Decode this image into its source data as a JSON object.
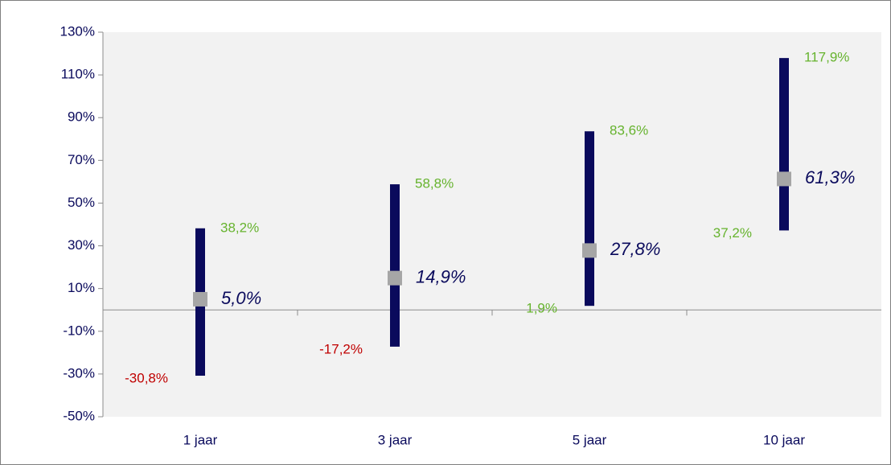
{
  "chart_data": {
    "type": "range",
    "categories": [
      "1 jaar",
      "3 jaar",
      "5 jaar",
      "10 jaar"
    ],
    "high": {
      "values": [
        38.2,
        58.8,
        83.6,
        117.9
      ],
      "value_labels": [
        "38,2%",
        "58,8%",
        "83,6%",
        "117,9%"
      ],
      "color": "#66b32e"
    },
    "low": {
      "values": [
        -30.8,
        -17.2,
        1.9,
        37.2
      ],
      "value_labels": [
        "-30,8%",
        "-17,2%",
        "1,9%",
        "37,2%"
      ],
      "colors": [
        "#c00000",
        "#c00000",
        "#66b32e",
        "#66b32e"
      ]
    },
    "mid": {
      "values": [
        5.0,
        14.9,
        27.8,
        61.3
      ],
      "value_labels": [
        "5,0%",
        "14,9%",
        "27,8%",
        "61,3%"
      ],
      "color": "#a6a6a6",
      "label_color": "#0a0a5c"
    },
    "bar_color": "#0a0a5c",
    "ylim": [
      -50,
      130
    ],
    "yticks": [
      {
        "value": -50,
        "label": "-50%"
      },
      {
        "value": -30,
        "label": "-30%"
      },
      {
        "value": -10,
        "label": "-10%"
      },
      {
        "value": 10,
        "label": "10%"
      },
      {
        "value": 30,
        "label": "30%"
      },
      {
        "value": 50,
        "label": "50%"
      },
      {
        "value": 70,
        "label": "70%"
      },
      {
        "value": 90,
        "label": "90%"
      },
      {
        "value": 110,
        "label": "110%"
      },
      {
        "value": 130,
        "label": "130%"
      }
    ]
  }
}
